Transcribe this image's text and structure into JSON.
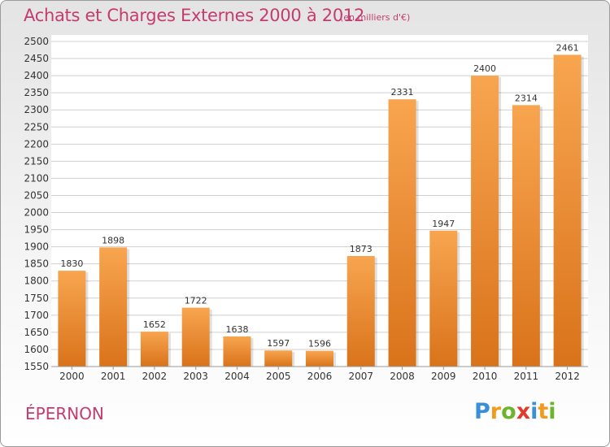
{
  "title": "Achats et Charges Externes 2000 à 2012",
  "subtitle": "(en milliers d'€)",
  "city": "ÉPERNON",
  "logo": {
    "letters": [
      "P",
      "r",
      "o",
      "x",
      "i",
      "t",
      "i"
    ],
    "colors": [
      "#3a8fd8",
      "#f29a1e",
      "#6cb42c",
      "#e23a2e",
      "#3a8fd8",
      "#f29a1e",
      "#6cb42c"
    ]
  },
  "colors": {
    "bar_light": "#f8a550",
    "bar_dark": "#d9731a",
    "grid": "#cfcfcf",
    "title": "#c43c6e"
  },
  "chart_data": {
    "type": "bar",
    "title": "Achats et Charges Externes 2000 à 2012",
    "subtitle": "(en milliers d'€)",
    "categories": [
      "2000",
      "2001",
      "2002",
      "2003",
      "2004",
      "2005",
      "2006",
      "2007",
      "2008",
      "2009",
      "2010",
      "2011",
      "2012"
    ],
    "values": [
      1830,
      1898,
      1652,
      1722,
      1638,
      1597,
      1596,
      1873,
      2331,
      1947,
      2400,
      2314,
      2461
    ],
    "ylim": [
      1550,
      2500
    ],
    "yticks": [
      1550,
      1600,
      1650,
      1700,
      1750,
      1800,
      1850,
      1900,
      1950,
      2000,
      2050,
      2100,
      2150,
      2200,
      2250,
      2300,
      2350,
      2400,
      2450,
      2500
    ],
    "grid": true,
    "xlabel": "",
    "ylabel": ""
  }
}
